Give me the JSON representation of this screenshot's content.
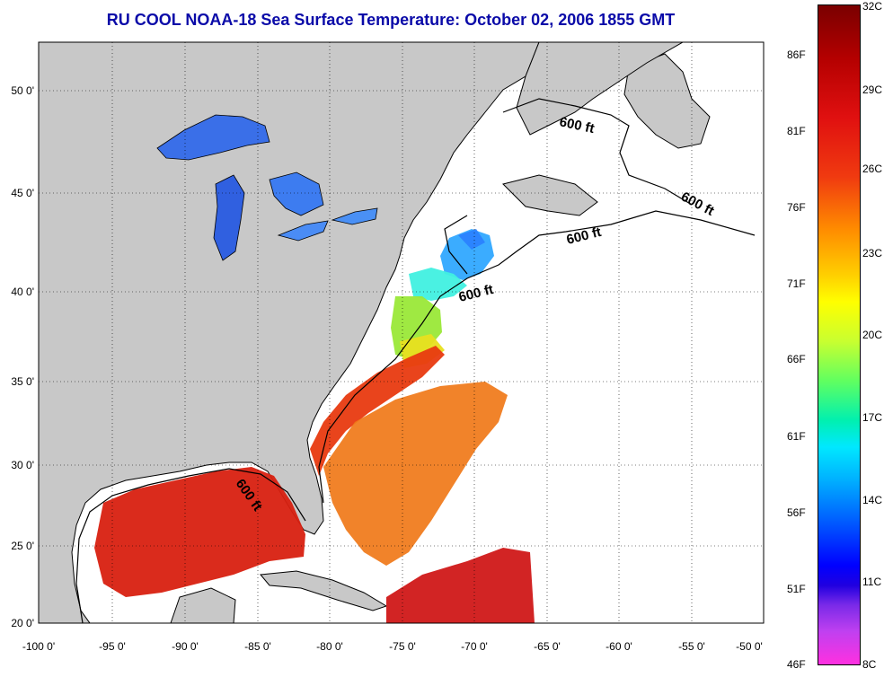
{
  "title": "RU COOL  NOAA-18  Sea Surface Temperature:  October 02, 2006 1855 GMT",
  "map": {
    "lon_labels": [
      "-100 0'",
      "-95 0'",
      "-90 0'",
      "-85 0'",
      "-80 0'",
      "-75 0'",
      "-70 0'",
      "-65 0'",
      "-60 0'",
      "-55 0'",
      "-50 0'"
    ],
    "lat_labels": [
      "50 0'",
      "45 0'",
      "40 0'",
      "35 0'",
      "30 0'",
      "25 0'",
      "20 0'"
    ],
    "lon_range": [
      -100,
      -50
    ],
    "lat_range": [
      20,
      52.5
    ],
    "grid": "dotted",
    "land_color": "#c8c8c8",
    "contour_label": "600 ft",
    "contour_labels": [
      "600 ft",
      "600 ft",
      "600 ft",
      "600 ft",
      "600 ft"
    ]
  },
  "colorbar": {
    "celsius_labels": [
      "32C",
      "29C",
      "26C",
      "23C",
      "20C",
      "17C",
      "14C",
      "11C",
      "8C"
    ],
    "fahrenheit_labels": [
      "86F",
      "81F",
      "76F",
      "71F",
      "66F",
      "61F",
      "56F",
      "51F",
      "46F"
    ],
    "range_celsius": [
      8,
      32
    ],
    "range_fahrenheit": [
      46,
      90
    ]
  }
}
